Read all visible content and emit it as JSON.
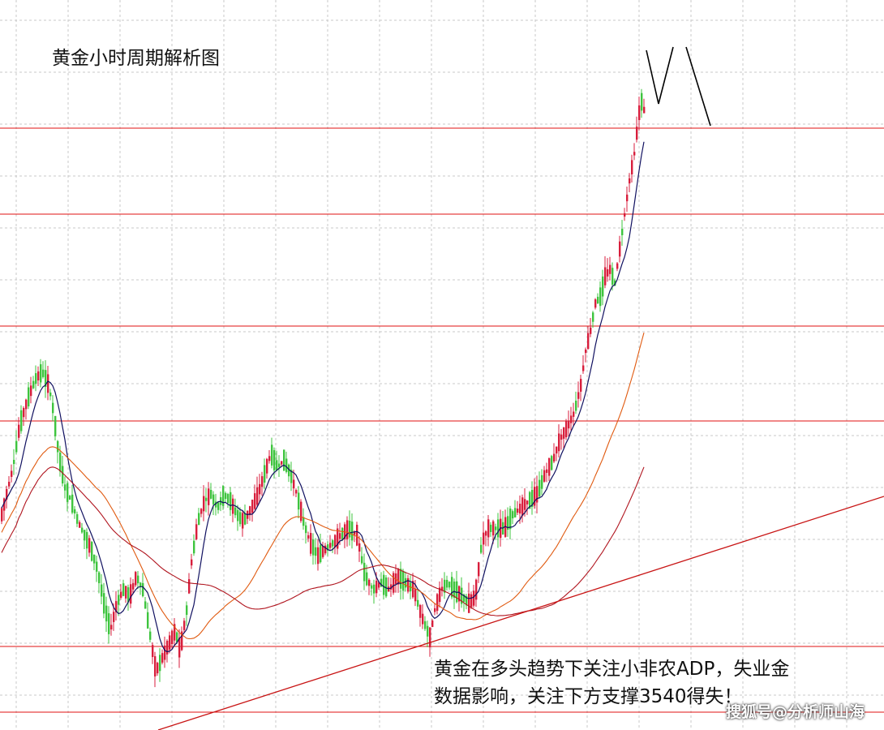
{
  "chart_data": {
    "type": "candlestick",
    "title": "黄金小时周期解析图",
    "annotation": "黄金在多头趋势下关注小非农ADP，失业金\n数据影响，关注下方支撑3540得失！",
    "watermark": "搜狐号@分析师山海",
    "colors": {
      "up": "#d81e3c",
      "down": "#3ec43e",
      "ma_short": "#101060",
      "ma_mid": "#e05a10",
      "ma_long": "#b0141e",
      "level_line": "#e01010",
      "trendline": "#c81414",
      "forecast": "#000000",
      "grid": "#c8c8c8"
    },
    "series_shape": [
      [
        0,
        0.7
      ],
      [
        8,
        0.66
      ],
      [
        16,
        0.62
      ],
      [
        24,
        0.56
      ],
      [
        34,
        0.52
      ],
      [
        44,
        0.49
      ],
      [
        52,
        0.48
      ],
      [
        60,
        0.5
      ],
      [
        66,
        0.54
      ],
      [
        72,
        0.6
      ],
      [
        80,
        0.65
      ],
      [
        88,
        0.67
      ],
      [
        96,
        0.7
      ],
      [
        104,
        0.72
      ],
      [
        112,
        0.74
      ],
      [
        120,
        0.77
      ],
      [
        128,
        0.82
      ],
      [
        136,
        0.86
      ],
      [
        144,
        0.82
      ],
      [
        152,
        0.8
      ],
      [
        160,
        0.81
      ],
      [
        168,
        0.78
      ],
      [
        176,
        0.8
      ],
      [
        184,
        0.86
      ],
      [
        192,
        0.92
      ],
      [
        200,
        0.9
      ],
      [
        208,
        0.88
      ],
      [
        216,
        0.86
      ],
      [
        222,
        0.89
      ],
      [
        230,
        0.83
      ],
      [
        236,
        0.76
      ],
      [
        244,
        0.7
      ],
      [
        252,
        0.67
      ],
      [
        260,
        0.66
      ],
      [
        268,
        0.68
      ],
      [
        276,
        0.66
      ],
      [
        284,
        0.67
      ],
      [
        292,
        0.69
      ],
      [
        300,
        0.7
      ],
      [
        310,
        0.68
      ],
      [
        318,
        0.66
      ],
      [
        326,
        0.63
      ],
      [
        334,
        0.6
      ],
      [
        342,
        0.62
      ],
      [
        350,
        0.61
      ],
      [
        358,
        0.63
      ],
      [
        366,
        0.66
      ],
      [
        374,
        0.7
      ],
      [
        382,
        0.73
      ],
      [
        392,
        0.75
      ],
      [
        402,
        0.74
      ],
      [
        412,
        0.73
      ],
      [
        420,
        0.72
      ],
      [
        430,
        0.71
      ],
      [
        440,
        0.72
      ],
      [
        450,
        0.78
      ],
      [
        460,
        0.8
      ],
      [
        470,
        0.79
      ],
      [
        480,
        0.8
      ],
      [
        490,
        0.78
      ],
      [
        500,
        0.79
      ],
      [
        510,
        0.8
      ],
      [
        520,
        0.84
      ],
      [
        530,
        0.87
      ],
      [
        536,
        0.83
      ],
      [
        544,
        0.8
      ],
      [
        552,
        0.79
      ],
      [
        560,
        0.8
      ],
      [
        570,
        0.81
      ],
      [
        578,
        0.82
      ],
      [
        586,
        0.81
      ],
      [
        594,
        0.73
      ],
      [
        602,
        0.71
      ],
      [
        612,
        0.71
      ],
      [
        622,
        0.71
      ],
      [
        632,
        0.69
      ],
      [
        642,
        0.68
      ],
      [
        652,
        0.67
      ],
      [
        662,
        0.66
      ],
      [
        672,
        0.63
      ],
      [
        682,
        0.61
      ],
      [
        690,
        0.58
      ],
      [
        700,
        0.56
      ],
      [
        708,
        0.54
      ],
      [
        716,
        0.5
      ],
      [
        722,
        0.45
      ],
      [
        728,
        0.42
      ],
      [
        734,
        0.38
      ],
      [
        740,
        0.37
      ],
      [
        746,
        0.34
      ],
      [
        752,
        0.33
      ],
      [
        758,
        0.35
      ],
      [
        764,
        0.3
      ],
      [
        770,
        0.25
      ],
      [
        776,
        0.2
      ],
      [
        782,
        0.16
      ],
      [
        786,
        0.12
      ],
      [
        790,
        0.08
      ],
      [
        795,
        0.1
      ]
    ]
  }
}
